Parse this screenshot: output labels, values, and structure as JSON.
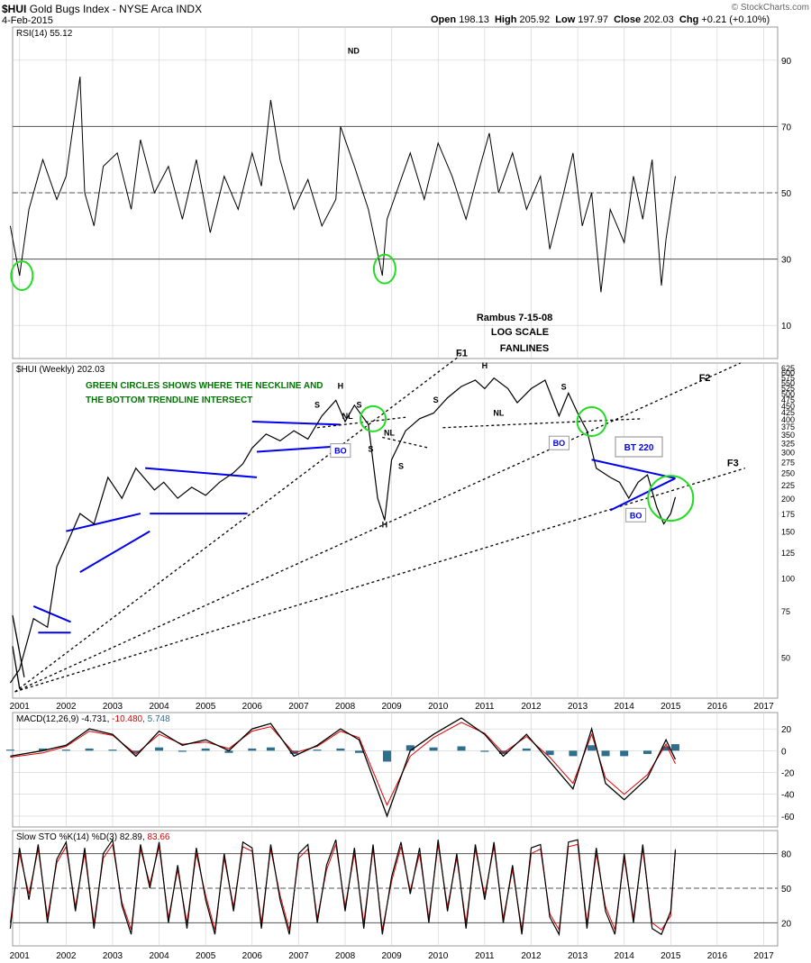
{
  "header": {
    "symbol": "$HUI",
    "name": "Gold Bugs Index - NYSE Arca INDX",
    "date": "4-Feb-2015",
    "open_label": "Open",
    "open": "198.13",
    "high_label": "High",
    "high": "205.92",
    "low_label": "Low",
    "low": "197.97",
    "close_label": "Close",
    "close": "202.03",
    "chg_label": "Chg",
    "chg": "+0.21 (+0.10%)",
    "watermark": "© StockCharts.com"
  },
  "colors": {
    "price": "#000000",
    "trendline_blue": "#0000ee",
    "green_circle": "#22dd22",
    "annot_green": "#007700",
    "macd_signal": "#dd0000",
    "macd_hist": "#2e6f8e",
    "rsi_high_fill": "#5b7350",
    "rsi_low_fill": "#7a5a52",
    "grid": "#d0d0d0"
  },
  "chart_data": [
    {
      "type": "line",
      "panel": "RSI",
      "legend": "RSI(14) 55.12",
      "ylim": [
        0,
        100
      ],
      "levels": [
        70,
        50,
        30
      ],
      "y_ticks": [
        "90",
        "70",
        "50",
        "30",
        "10"
      ],
      "x": [
        2000.8,
        2001.0,
        2001.2,
        2001.5,
        2001.8,
        2002.0,
        2002.3,
        2002.4,
        2002.6,
        2002.8,
        2003.1,
        2003.4,
        2003.6,
        2003.9,
        2004.2,
        2004.5,
        2004.8,
        2005.1,
        2005.4,
        2005.7,
        2006.0,
        2006.2,
        2006.4,
        2006.6,
        2006.9,
        2007.2,
        2007.5,
        2007.8,
        2007.9,
        2008.2,
        2008.5,
        2008.8,
        2008.9,
        2009.1,
        2009.4,
        2009.7,
        2010.0,
        2010.3,
        2010.6,
        2010.9,
        2011.1,
        2011.3,
        2011.6,
        2011.9,
        2012.2,
        2012.4,
        2012.7,
        2012.9,
        2013.1,
        2013.3,
        2013.5,
        2013.7,
        2014.0,
        2014.2,
        2014.4,
        2014.6,
        2014.8,
        2014.9,
        2015.1
      ],
      "values": [
        40,
        25,
        45,
        60,
        48,
        55,
        85,
        50,
        40,
        58,
        62,
        45,
        66,
        50,
        58,
        42,
        60,
        38,
        55,
        45,
        62,
        52,
        78,
        60,
        45,
        54,
        40,
        48,
        70,
        58,
        45,
        25,
        42,
        50,
        62,
        48,
        65,
        55,
        42,
        58,
        68,
        50,
        62,
        45,
        55,
        33,
        50,
        62,
        40,
        50,
        20,
        45,
        35,
        55,
        42,
        60,
        22,
        36,
        55
      ],
      "annotations": [
        "ND"
      ]
    },
    {
      "type": "line",
      "panel": "Price",
      "legend": "$HUI (Weekly) 202.03",
      "scale": "log",
      "ylim": [
        35,
        650
      ],
      "y_ticks": [
        "625",
        "600",
        "575",
        "550",
        "525",
        "500",
        "475",
        "450",
        "425",
        "400",
        "375",
        "350",
        "325",
        "300",
        "275",
        "250",
        "225",
        "200",
        "175",
        "150",
        "125",
        "100",
        "75",
        "50"
      ],
      "x_ticks": [
        "2001",
        "2002",
        "2003",
        "2004",
        "2005",
        "2006",
        "2007",
        "2008",
        "2009",
        "2010",
        "2011",
        "2012",
        "2013",
        "2014",
        "2015",
        "2016",
        "2017"
      ],
      "x": [
        2000.8,
        2001.0,
        2001.3,
        2001.6,
        2001.8,
        2002.1,
        2002.3,
        2002.6,
        2002.9,
        2003.2,
        2003.5,
        2003.9,
        2004.1,
        2004.4,
        2004.7,
        2005.0,
        2005.3,
        2005.6,
        2005.8,
        2006.0,
        2006.3,
        2006.6,
        2006.9,
        2007.2,
        2007.5,
        2007.8,
        2008.0,
        2008.2,
        2008.5,
        2008.7,
        2008.85,
        2009.0,
        2009.3,
        2009.6,
        2009.9,
        2010.2,
        2010.5,
        2010.8,
        2011.0,
        2011.2,
        2011.5,
        2011.7,
        2012.0,
        2012.3,
        2012.6,
        2012.8,
        2013.0,
        2013.2,
        2013.4,
        2013.7,
        2013.9,
        2014.1,
        2014.3,
        2014.5,
        2014.7,
        2014.85,
        2015.0,
        2015.1
      ],
      "values": [
        40,
        45,
        70,
        65,
        110,
        145,
        175,
        160,
        240,
        200,
        260,
        215,
        230,
        200,
        220,
        205,
        230,
        250,
        270,
        310,
        350,
        330,
        360,
        335,
        410,
        470,
        390,
        450,
        380,
        200,
        165,
        280,
        360,
        400,
        420,
        480,
        530,
        560,
        520,
        570,
        520,
        460,
        520,
        560,
        410,
        500,
        420,
        360,
        260,
        240,
        230,
        200,
        230,
        245,
        185,
        160,
        175,
        202
      ],
      "annotations": [
        "GREEN CIRCLES SHOWS WHERE THE NECKLINE AND",
        "THE BOTTOM TRENDLINE INTERSECT",
        "Rambus  7-15-08",
        "LOG SCALE",
        "FANLINES",
        "F1",
        "F2",
        "F3",
        "BT 220",
        "H",
        "S",
        "NL",
        "BO"
      ]
    },
    {
      "type": "line",
      "panel": "MACD",
      "legend_label": "MACD(12,26,9)",
      "legend_values": [
        "-4.731",
        "-10.480",
        "5.748"
      ],
      "ylim": [
        -70,
        35
      ],
      "y_ticks": [
        "20",
        "0",
        "-20",
        "-40",
        "-60"
      ],
      "x": [
        2000.8,
        2001.5,
        2002.0,
        2002.5,
        2003.0,
        2003.5,
        2004.0,
        2004.5,
        2005.0,
        2005.5,
        2006.0,
        2006.4,
        2006.9,
        2007.4,
        2007.9,
        2008.3,
        2008.9,
        2009.4,
        2009.9,
        2010.5,
        2011.0,
        2011.4,
        2011.9,
        2012.4,
        2012.9,
        2013.3,
        2013.6,
        2014.0,
        2014.5,
        2014.9,
        2015.1
      ],
      "macd": [
        -5,
        0,
        5,
        20,
        15,
        -5,
        18,
        5,
        10,
        0,
        20,
        25,
        -5,
        5,
        20,
        10,
        -60,
        0,
        15,
        30,
        15,
        -5,
        15,
        -10,
        -35,
        20,
        -30,
        -45,
        -25,
        10,
        -8
      ],
      "signal": [
        -6,
        -2,
        4,
        18,
        14,
        -3,
        15,
        6,
        8,
        2,
        18,
        22,
        -2,
        4,
        18,
        12,
        -50,
        -5,
        12,
        26,
        16,
        -2,
        13,
        -6,
        -30,
        15,
        -25,
        -40,
        -22,
        6,
        -12
      ],
      "histogram": [
        1,
        2,
        1,
        2,
        1,
        -2,
        3,
        -1,
        2,
        -2,
        2,
        3,
        -3,
        1,
        2,
        -2,
        -10,
        5,
        3,
        4,
        -1,
        -3,
        2,
        -4,
        -5,
        5,
        -5,
        -5,
        -3,
        4,
        6
      ]
    },
    {
      "type": "line",
      "panel": "Slow STO",
      "legend_label": "Slow STO %K(14) %D(3)",
      "legend_values": [
        "82.89",
        "83.66"
      ],
      "ylim": [
        0,
        100
      ],
      "y_ticks": [
        "80",
        "50",
        "20"
      ],
      "x": [
        2000.8,
        2001.0,
        2001.2,
        2001.4,
        2001.6,
        2001.8,
        2002.0,
        2002.2,
        2002.4,
        2002.6,
        2002.8,
        2003.0,
        2003.2,
        2003.4,
        2003.6,
        2003.8,
        2004.0,
        2004.2,
        2004.4,
        2004.6,
        2004.8,
        2005.0,
        2005.2,
        2005.4,
        2005.6,
        2005.8,
        2006.0,
        2006.2,
        2006.4,
        2006.6,
        2006.8,
        2007.0,
        2007.2,
        2007.4,
        2007.6,
        2007.8,
        2008.0,
        2008.2,
        2008.4,
        2008.6,
        2008.8,
        2009.0,
        2009.2,
        2009.4,
        2009.6,
        2009.8,
        2010.0,
        2010.2,
        2010.4,
        2010.6,
        2010.8,
        2011.0,
        2011.2,
        2011.4,
        2011.6,
        2011.8,
        2012.0,
        2012.2,
        2012.4,
        2012.6,
        2012.8,
        2013.0,
        2013.2,
        2013.4,
        2013.6,
        2013.8,
        2014.0,
        2014.2,
        2014.4,
        2014.6,
        2014.8,
        2015.0,
        2015.1
      ],
      "k": [
        15,
        85,
        40,
        88,
        20,
        75,
        90,
        30,
        85,
        15,
        80,
        92,
        35,
        10,
        88,
        50,
        90,
        20,
        70,
        15,
        85,
        40,
        10,
        80,
        30,
        90,
        85,
        15,
        88,
        40,
        10,
        80,
        88,
        20,
        70,
        92,
        30,
        85,
        15,
        88,
        10,
        60,
        90,
        45,
        85,
        20,
        92,
        30,
        80,
        15,
        88,
        40,
        90,
        20,
        70,
        10,
        85,
        88,
        25,
        10,
        90,
        92,
        15,
        85,
        30,
        10,
        80,
        20,
        88,
        15,
        10,
        30,
        83
      ],
      "d": [
        20,
        80,
        45,
        84,
        25,
        72,
        86,
        34,
        80,
        20,
        76,
        88,
        38,
        14,
        84,
        54,
        86,
        24,
        66,
        20,
        80,
        44,
        14,
        76,
        34,
        86,
        82,
        20,
        84,
        44,
        14,
        76,
        84,
        24,
        66,
        88,
        34,
        80,
        20,
        84,
        14,
        56,
        86,
        48,
        80,
        24,
        88,
        34,
        76,
        20,
        84,
        44,
        86,
        24,
        66,
        14,
        80,
        84,
        28,
        14,
        86,
        88,
        20,
        80,
        34,
        14,
        76,
        24,
        84,
        20,
        14,
        26,
        84
      ]
    }
  ]
}
